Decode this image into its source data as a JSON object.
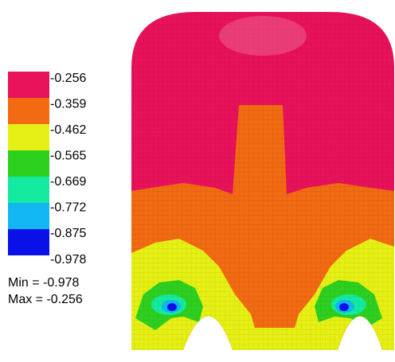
{
  "legend": {
    "labels": [
      "-0.256",
      "-0.359",
      "-0.462",
      "-0.565",
      "-0.669",
      "-0.772",
      "-0.875",
      "-0.978"
    ],
    "colors": [
      "#e8125a",
      "#f26a12",
      "#e6f014",
      "#2ed020",
      "#14eaa0",
      "#12b6f0",
      "#0a10e8"
    ]
  },
  "min_label": "Min = -0.978",
  "max_label": "Max = -0.256"
}
